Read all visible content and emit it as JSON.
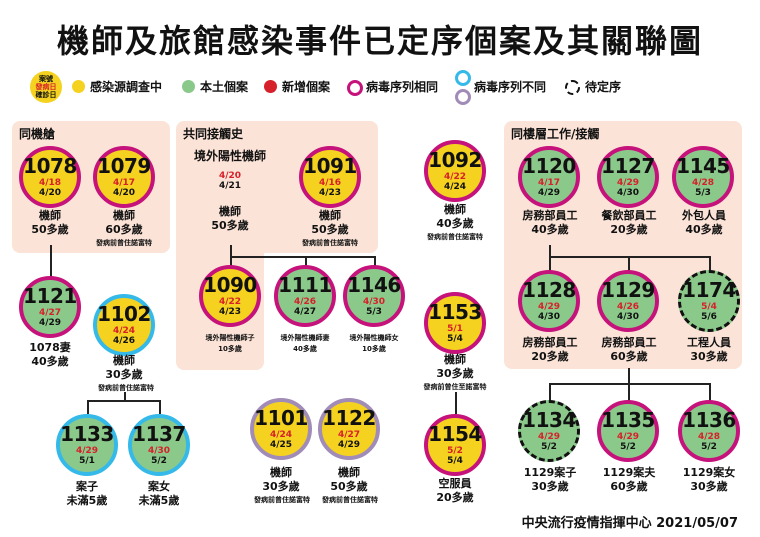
{
  "title": "機師及旅館感染事件已定序個案及其關聯圖",
  "legend": {
    "key_line1": "案號",
    "key_line2": "發病日",
    "key_line3": "確診日",
    "items": [
      {
        "label": "感染源調查中",
        "color": "#f4d21f"
      },
      {
        "label": "本土個案",
        "color": "#8bc98b"
      },
      {
        "label": "新增個案",
        "color": "#d6202a"
      },
      {
        "label": "病毒序列相同",
        "color": "#c6127b"
      },
      {
        "label": "病毒序列不同",
        "color": "#35b9e9"
      },
      {
        "label": "待定序",
        "color": "#111111"
      }
    ]
  },
  "panels": {
    "same_flight": "同機艙",
    "common_contact": "共同接觸史",
    "same_floor": "同樓層工作/接觸"
  },
  "external_source": {
    "line1": "境外陽性機師",
    "onset": "4/20",
    "confirm": "4/21"
  },
  "cases": {
    "c1078": {
      "id": "1078",
      "onset": "4/18",
      "confirm": "4/20",
      "role": "機師",
      "age": "50多歲",
      "note": ""
    },
    "c1079": {
      "id": "1079",
      "onset": "4/17",
      "confirm": "4/20",
      "role": "機師",
      "age": "60多歲",
      "note": "發病前曾住諾富特"
    },
    "c1121": {
      "id": "1121",
      "onset": "4/27",
      "confirm": "4/29",
      "role": "1078妻",
      "age": "40多歲",
      "note": ""
    },
    "c1102": {
      "id": "1102",
      "onset": "4/24",
      "confirm": "4/26",
      "role": "機師",
      "age": "30多歲",
      "note": "發病前曾住諾富特"
    },
    "c1133": {
      "id": "1133",
      "onset": "4/29",
      "confirm": "5/1",
      "role": "案子",
      "age": "未滿5歲",
      "note": ""
    },
    "c1137": {
      "id": "1137",
      "onset": "4/30",
      "confirm": "5/2",
      "role": "案女",
      "age": "未滿5歲",
      "note": ""
    },
    "ext": {
      "role": "機師",
      "age": "50多歲"
    },
    "c1091": {
      "id": "1091",
      "onset": "4/16",
      "confirm": "4/23",
      "role": "機師",
      "age": "50多歲",
      "note": "發病前曾住諾富特"
    },
    "c1090": {
      "id": "1090",
      "onset": "4/22",
      "confirm": "4/23",
      "role": "",
      "age": "10多歲",
      "note": "境外陽性機師子"
    },
    "c1111": {
      "id": "1111",
      "onset": "4/26",
      "confirm": "4/27",
      "role": "",
      "age": "40多歲",
      "note": "境外陽性機師妻"
    },
    "c1146": {
      "id": "1146",
      "onset": "4/30",
      "confirm": "5/3",
      "role": "",
      "age": "10多歲",
      "note": "境外陽性機師女"
    },
    "c1092": {
      "id": "1092",
      "onset": "4/22",
      "confirm": "4/24",
      "role": "機師",
      "age": "40多歲",
      "note": "發病前曾住諾富特"
    },
    "c1153": {
      "id": "1153",
      "onset": "5/1",
      "confirm": "5/4",
      "role": "機師",
      "age": "30多歲",
      "note": "發病前曾住至諾富特"
    },
    "c1154": {
      "id": "1154",
      "onset": "5/2",
      "confirm": "5/4",
      "role": "空服員",
      "age": "20多歲",
      "note": ""
    },
    "c1101": {
      "id": "1101",
      "onset": "4/24",
      "confirm": "4/25",
      "role": "機師",
      "age": "30多歲",
      "note": "發病前曾住諾富特"
    },
    "c1122": {
      "id": "1122",
      "onset": "4/27",
      "confirm": "4/29",
      "role": "機師",
      "age": "50多歲",
      "note": "發病前曾住諾富特"
    },
    "c1120": {
      "id": "1120",
      "onset": "4/17",
      "confirm": "4/29",
      "role": "房務部員工",
      "age": "40多歲",
      "note": ""
    },
    "c1127": {
      "id": "1127",
      "onset": "4/29",
      "confirm": "4/30",
      "role": "餐飲部員工",
      "age": "20多歲",
      "note": ""
    },
    "c1145": {
      "id": "1145",
      "onset": "4/28",
      "confirm": "5/3",
      "role": "外包人員",
      "age": "40多歲",
      "note": ""
    },
    "c1128": {
      "id": "1128",
      "onset": "4/29",
      "confirm": "4/30",
      "role": "房務部員工",
      "age": "20多歲",
      "note": ""
    },
    "c1129": {
      "id": "1129",
      "onset": "4/26",
      "confirm": "4/30",
      "role": "房務部員工",
      "age": "60多歲",
      "note": ""
    },
    "c1174": {
      "id": "1174",
      "onset": "5/4",
      "confirm": "5/6",
      "role": "工程人員",
      "age": "30多歲",
      "note": ""
    },
    "c1134": {
      "id": "1134",
      "onset": "4/29",
      "confirm": "5/2",
      "role": "1129案子",
      "age": "30多歲",
      "note": ""
    },
    "c1135": {
      "id": "1135",
      "onset": "4/29",
      "confirm": "5/2",
      "role": "1129案夫",
      "age": "60多歲",
      "note": ""
    },
    "c1136": {
      "id": "1136",
      "onset": "4/28",
      "confirm": "5/2",
      "role": "1129案女",
      "age": "30多歲",
      "note": ""
    }
  },
  "footer": "中央流行疫情指揮中心 2021/05/07"
}
